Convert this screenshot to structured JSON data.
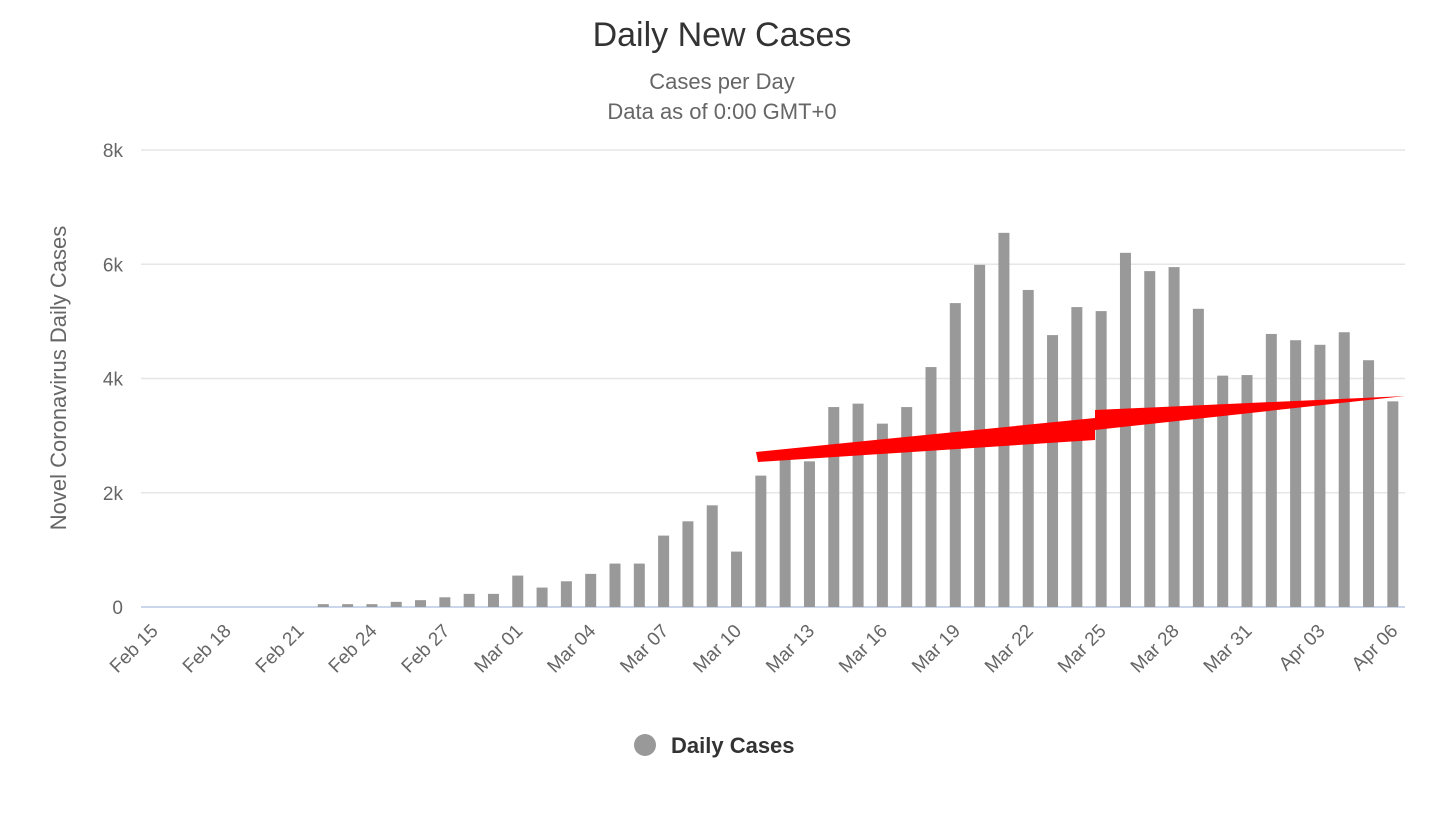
{
  "chart_data": {
    "type": "bar",
    "title": "Daily New Cases",
    "subtitle": [
      "Cases per Day",
      "Data as of 0:00 GMT+0"
    ],
    "y_label": "Novel Coronavirus Daily Cases",
    "categories": [
      "Feb 15",
      null,
      null,
      "Feb 18",
      null,
      null,
      "Feb 21",
      null,
      null,
      "Feb 24",
      null,
      null,
      "Feb 27",
      null,
      null,
      "Mar 01",
      null,
      null,
      "Mar 04",
      null,
      null,
      "Mar 07",
      null,
      null,
      "Mar 10",
      null,
      null,
      "Mar 13",
      null,
      null,
      "Mar 16",
      null,
      null,
      "Mar 19",
      null,
      null,
      "Mar 22",
      null,
      null,
      "Mar 25",
      null,
      null,
      "Mar 28",
      null,
      null,
      "Mar 31",
      null,
      null,
      "Apr 03",
      null,
      null,
      "Apr 06"
    ],
    "series": [
      {
        "name": "Daily Cases",
        "color": "#999999",
        "values": [
          0,
          0,
          0,
          0,
          0,
          0,
          0,
          50,
          50,
          50,
          90,
          120,
          170,
          230,
          230,
          550,
          340,
          450,
          580,
          760,
          760,
          1250,
          1500,
          1780,
          970,
          2300,
          2650,
          2550,
          3500,
          3560,
          3210,
          3500,
          4200,
          5320,
          5990,
          6550,
          5550,
          4760,
          5250,
          5180,
          6200,
          5880,
          5950,
          5220,
          4050,
          4060,
          4780,
          4670,
          4590,
          4810,
          4320,
          3600
        ]
      }
    ],
    "ylim": [
      0,
      8000
    ],
    "yticks": [
      0,
      {
        "value": 2000,
        "label": "2k"
      },
      {
        "value": 4000,
        "label": "4k"
      },
      {
        "value": 6000,
        "label": "6k"
      },
      {
        "value": 8000,
        "label": "8k"
      }
    ],
    "grid": true,
    "legend": "bottom"
  }
}
